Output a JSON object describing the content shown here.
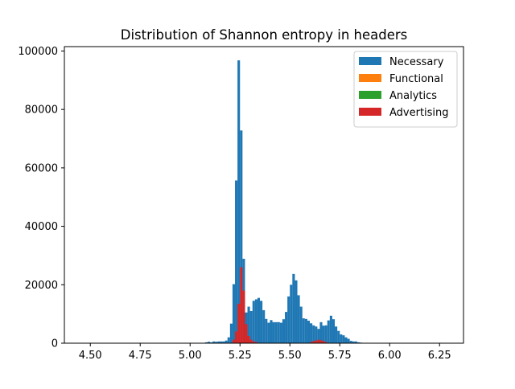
{
  "chart_data": {
    "type": "bar",
    "title": "Distribution of Shannon entropy in headers",
    "xlabel": "",
    "ylabel": "",
    "xlim": [
      4.37,
      6.37
    ],
    "ylim": [
      0,
      101500
    ],
    "bin_width": 0.0125,
    "xticks": [
      4.5,
      4.75,
      5.0,
      5.25,
      5.5,
      5.75,
      6.0,
      6.25
    ],
    "xtick_labels": [
      "4.50",
      "4.75",
      "5.00",
      "5.25",
      "5.50",
      "5.75",
      "6.00",
      "6.25"
    ],
    "yticks": [
      0,
      20000,
      40000,
      60000,
      80000,
      100000
    ],
    "ytick_labels": [
      "0",
      "20000",
      "40000",
      "60000",
      "80000",
      "100000"
    ],
    "legend_position": "top-right",
    "series": [
      {
        "name": "Necessary",
        "color": "#1f77b4",
        "bins": [
          [
            5.075,
            300
          ],
          [
            5.0875,
            500
          ],
          [
            5.1,
            300
          ],
          [
            5.1125,
            600
          ],
          [
            5.125,
            500
          ],
          [
            5.1375,
            600
          ],
          [
            5.15,
            600
          ],
          [
            5.1625,
            600
          ],
          [
            5.175,
            900
          ],
          [
            5.1875,
            2000
          ],
          [
            5.2,
            6700
          ],
          [
            5.2125,
            20200
          ],
          [
            5.225,
            55700
          ],
          [
            5.2375,
            96800
          ],
          [
            5.25,
            72800
          ],
          [
            5.2625,
            28900
          ],
          [
            5.275,
            10500
          ],
          [
            5.2875,
            12500
          ],
          [
            5.3,
            11000
          ],
          [
            5.3125,
            14500
          ],
          [
            5.325,
            15000
          ],
          [
            5.3375,
            15500
          ],
          [
            5.35,
            14500
          ],
          [
            5.3625,
            11300
          ],
          [
            5.375,
            8300
          ],
          [
            5.3875,
            7000
          ],
          [
            5.4,
            7900
          ],
          [
            5.4125,
            7200
          ],
          [
            5.425,
            7200
          ],
          [
            5.4375,
            7200
          ],
          [
            5.45,
            7000
          ],
          [
            5.4625,
            8200
          ],
          [
            5.475,
            10700
          ],
          [
            5.4875,
            16000
          ],
          [
            5.5,
            20000
          ],
          [
            5.5125,
            23700
          ],
          [
            5.525,
            21500
          ],
          [
            5.5375,
            16400
          ],
          [
            5.55,
            12500
          ],
          [
            5.5625,
            8500
          ],
          [
            5.575,
            8300
          ],
          [
            5.5875,
            7700
          ],
          [
            5.6,
            6800
          ],
          [
            5.6125,
            6100
          ],
          [
            5.625,
            5700
          ],
          [
            5.6375,
            4900
          ],
          [
            5.65,
            7200
          ],
          [
            5.6625,
            6000
          ],
          [
            5.675,
            6100
          ],
          [
            5.6875,
            7800
          ],
          [
            5.7,
            9400
          ],
          [
            5.7125,
            8200
          ],
          [
            5.725,
            5700
          ],
          [
            5.7375,
            4200
          ],
          [
            5.75,
            3000
          ],
          [
            5.7625,
            2700
          ],
          [
            5.775,
            2000
          ],
          [
            5.7875,
            1500
          ],
          [
            5.8,
            800
          ],
          [
            5.8125,
            600
          ],
          [
            5.825,
            600
          ],
          [
            5.8375,
            300
          ],
          [
            5.85,
            200
          ]
        ]
      },
      {
        "name": "Functional",
        "color": "#ff7f0e",
        "bins": []
      },
      {
        "name": "Analytics",
        "color": "#2ca02c",
        "bins": []
      },
      {
        "name": "Advertising",
        "color": "#d62728",
        "bins": [
          [
            5.2125,
            1200
          ],
          [
            5.225,
            4000
          ],
          [
            5.2375,
            13500
          ],
          [
            5.25,
            26000
          ],
          [
            5.2625,
            18000
          ],
          [
            5.275,
            6500
          ],
          [
            5.2875,
            2500
          ],
          [
            5.3,
            1200
          ],
          [
            5.3125,
            600
          ],
          [
            5.325,
            400
          ],
          [
            5.6,
            400
          ],
          [
            5.6125,
            700
          ],
          [
            5.625,
            900
          ],
          [
            5.6375,
            1200
          ],
          [
            5.65,
            1000
          ],
          [
            5.6625,
            700
          ],
          [
            5.675,
            400
          ]
        ]
      }
    ]
  }
}
